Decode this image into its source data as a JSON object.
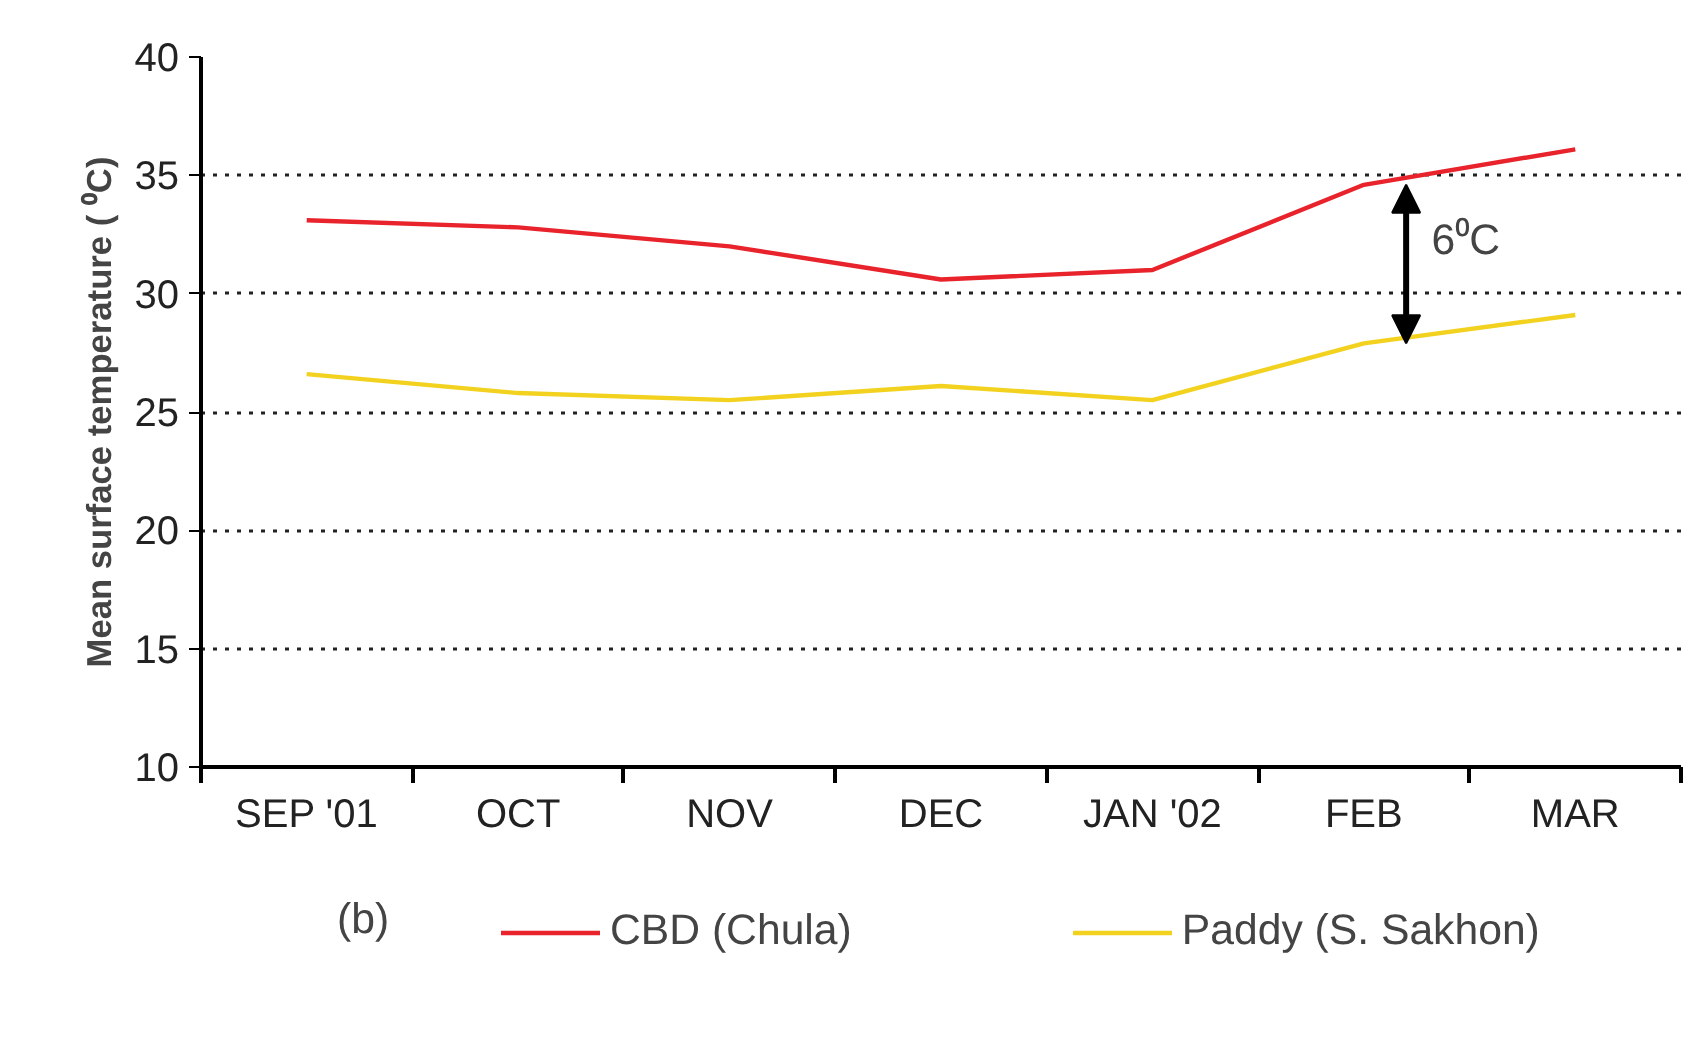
{
  "chart_data": {
    "type": "line",
    "ylabel": "Mean surface temperature ( ⁰C)",
    "categories": [
      "SEP '01",
      "OCT",
      "NOV",
      "DEC",
      "JAN '02",
      "FEB",
      "MAR"
    ],
    "series": [
      {
        "name": "CBD (Chula)",
        "color": "#e8232b",
        "values": [
          33.1,
          32.8,
          32.0,
          30.6,
          31.0,
          34.6,
          36.1
        ]
      },
      {
        "name": "Paddy (S. Sakhon)",
        "color": "#f2d21e",
        "values": [
          26.6,
          25.8,
          25.5,
          26.1,
          25.5,
          27.9,
          29.1
        ]
      }
    ],
    "ylim": [
      10,
      40
    ],
    "yticks": [
      10,
      15,
      20,
      25,
      30,
      35,
      40
    ],
    "grid": "y",
    "legend": "bottom",
    "marker": "none",
    "line_style": "solid",
    "annotations": [
      {
        "text": "6⁰C",
        "x": "FEB",
        "y": 34.6
      },
      "(b)"
    ]
  }
}
